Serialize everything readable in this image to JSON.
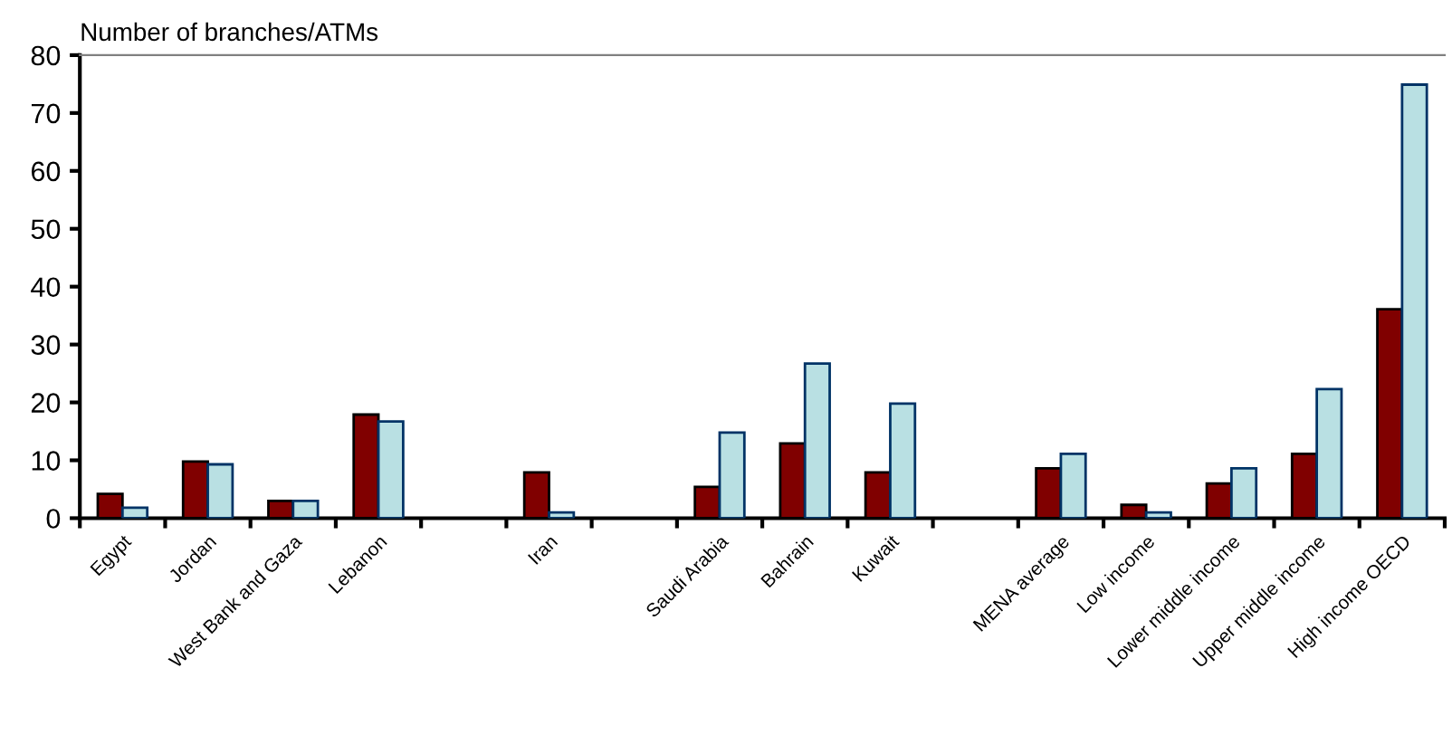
{
  "chart_data": {
    "type": "bar",
    "ylabel": "Number of branches/ATMs",
    "categories": [
      "Egypt",
      "Jordan",
      "West Bank and Gaza",
      "Lebanon",
      null,
      "Iran",
      null,
      "Saudi Arabia",
      "Bahrain",
      "Kuwait",
      null,
      "MENA average",
      "Low income",
      "Lower middle income",
      "Upper middle income",
      "High income OECD"
    ],
    "series": [
      {
        "color": "#800000",
        "values": [
          4.2,
          9.8,
          3.0,
          17.9,
          null,
          7.9,
          null,
          5.4,
          12.9,
          7.9,
          null,
          8.6,
          2.3,
          6.0,
          11.1,
          36.1
        ]
      },
      {
        "color": "#b9e0e3",
        "values": [
          1.8,
          9.3,
          3.0,
          16.7,
          null,
          1.0,
          null,
          14.8,
          26.7,
          19.8,
          null,
          11.1,
          1.0,
          8.6,
          22.3,
          74.9
        ]
      }
    ],
    "ylim": [
      0,
      80
    ],
    "yticks": [
      0,
      10,
      20,
      30,
      40,
      50,
      60,
      70,
      80
    ],
    "grid": false,
    "legend": false
  }
}
